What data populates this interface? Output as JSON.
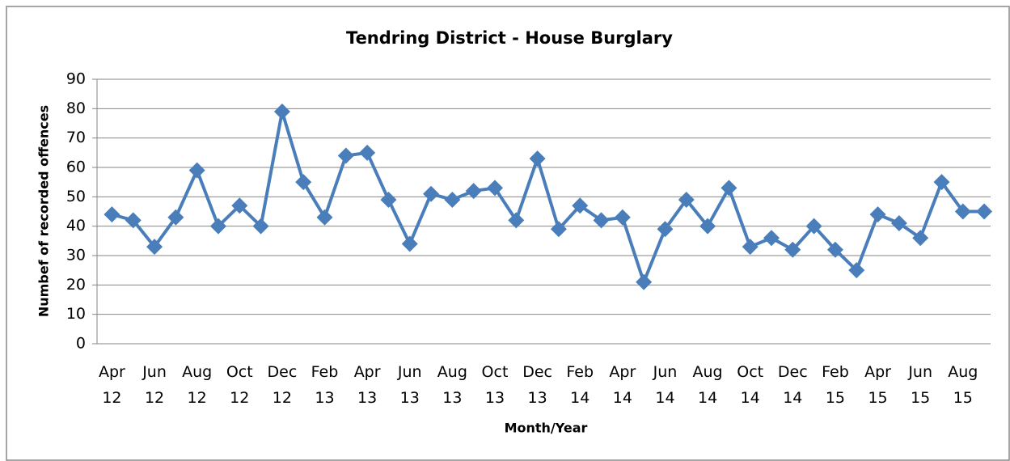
{
  "chart_data": {
    "type": "line",
    "title": "Tendring District - House Burglary",
    "x_label": "Month/Year",
    "y_label": "Numbef of recorded offences",
    "categories": [
      "Apr 12",
      null,
      "Jun 12",
      null,
      "Aug 12",
      null,
      "Oct 12",
      null,
      "Dec 12",
      null,
      "Feb 13",
      null,
      "Apr 13",
      null,
      "Jun 13",
      null,
      "Aug 13",
      null,
      "Oct 13",
      null,
      "Dec 13",
      null,
      "Feb 14",
      null,
      "Apr 14",
      null,
      "Jun 14",
      null,
      "Aug 14",
      null,
      "Oct 14",
      null,
      "Dec 14",
      null,
      "Feb 15",
      null,
      "Apr 15",
      null,
      "Jun 15",
      null,
      "Aug 15",
      null
    ],
    "series": [
      {
        "name": "House Burglary",
        "color": "#4a7ebb",
        "values": [
          44,
          42,
          33,
          43,
          59,
          40,
          47,
          40,
          79,
          55,
          43,
          64,
          65,
          49,
          34,
          51,
          49,
          52,
          53,
          42,
          63,
          39,
          47,
          42,
          43,
          21,
          39,
          49,
          40,
          53,
          33,
          36,
          32,
          40,
          32,
          25,
          44,
          41,
          36,
          55,
          45,
          45
        ]
      }
    ],
    "ylim": [
      0,
      90
    ],
    "yticks": [
      0,
      10,
      20,
      30,
      40,
      50,
      60,
      70,
      80,
      90
    ],
    "grid": true
  }
}
